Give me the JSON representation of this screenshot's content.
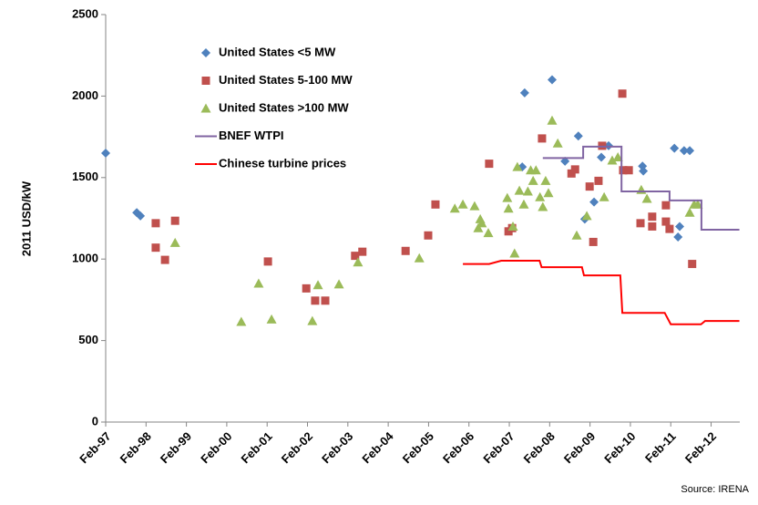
{
  "chart_data": {
    "type": "scatter",
    "y_label": "2011 USD/kW",
    "source": "Source: IRENA",
    "xlim": [
      1997.1,
      2012.81
    ],
    "xticks": [
      {
        "value": 1997.1,
        "label": "Feb-97"
      },
      {
        "value": 1998.1,
        "label": "Feb-98"
      },
      {
        "value": 1999.1,
        "label": "Feb-99"
      },
      {
        "value": 2000.1,
        "label": "Feb-00"
      },
      {
        "value": 2001.1,
        "label": "Feb-01"
      },
      {
        "value": 2002.1,
        "label": "Feb-02"
      },
      {
        "value": 2003.1,
        "label": "Feb-03"
      },
      {
        "value": 2004.1,
        "label": "Feb-04"
      },
      {
        "value": 2005.1,
        "label": "Feb-05"
      },
      {
        "value": 2006.1,
        "label": "Feb-06"
      },
      {
        "value": 2007.1,
        "label": "Feb-07"
      },
      {
        "value": 2008.1,
        "label": "Feb-08"
      },
      {
        "value": 2009.1,
        "label": "Feb-09"
      },
      {
        "value": 2010.1,
        "label": "Feb-10"
      },
      {
        "value": 2011.1,
        "label": "Feb-11"
      },
      {
        "value": 2012.1,
        "label": "Feb-12"
      }
    ],
    "ylim": [
      0,
      2500
    ],
    "yticks": [
      0,
      500,
      1000,
      1500,
      2000,
      2500
    ],
    "legend": "upper-left",
    "series": [
      {
        "name": "United States <5 MW",
        "color": "#4f81bd",
        "marker": "diamond",
        "x": [
          1997.1,
          1997.87,
          1997.96,
          2007.48,
          2007.42,
          2008.16,
          2008.48,
          2008.81,
          2008.97,
          2009.2,
          2009.38,
          2009.56,
          2010.4,
          2010.42,
          2011.19,
          2011.28,
          2011.32,
          2011.43,
          2011.57
        ],
        "values": [
          1650,
          1285,
          1265,
          2020,
          1565,
          2100,
          1600,
          1755,
          1245,
          1350,
          1625,
          1695,
          1570,
          1540,
          1680,
          1135,
          1200,
          1665,
          1665
        ]
      },
      {
        "name": "United States 5-100 MW",
        "color": "#c0504d",
        "marker": "square",
        "x": [
          1998.34,
          1998.34,
          1998.57,
          1998.82,
          2001.12,
          2002.07,
          2002.29,
          2002.54,
          2003.28,
          2003.46,
          2004.53,
          2005.09,
          2005.27,
          2006.6,
          2007.08,
          2007.17,
          2007.91,
          2008.64,
          2008.73,
          2009.09,
          2009.18,
          2009.31,
          2009.4,
          2009.9,
          2009.92,
          2010.06,
          2010.35,
          2010.64,
          2010.64,
          2010.98,
          2010.98,
          2011.07,
          2011.63
        ],
        "values": [
          1220,
          1070,
          995,
          1235,
          985,
          820,
          745,
          745,
          1020,
          1045,
          1050,
          1145,
          1335,
          1585,
          1170,
          1190,
          1740,
          1525,
          1550,
          1445,
          1105,
          1480,
          1695,
          2015,
          1545,
          1545,
          1220,
          1260,
          1200,
          1330,
          1230,
          1185,
          970
        ]
      },
      {
        "name": "United States >100 MW",
        "color": "#9bbb59",
        "marker": "triangle",
        "x": [
          1998.82,
          2000.46,
          2000.89,
          2001.21,
          2002.22,
          2002.36,
          2002.88,
          2003.35,
          2004.87,
          2005.75,
          2005.95,
          2006.24,
          2006.33,
          2006.38,
          2006.42,
          2006.58,
          2007.05,
          2007.08,
          2007.19,
          2007.23,
          2007.3,
          2007.35,
          2007.46,
          2007.56,
          2007.63,
          2007.69,
          2007.76,
          2007.86,
          2007.93,
          2008.0,
          2008.07,
          2008.16,
          2008.3,
          2008.77,
          2009.02,
          2009.45,
          2009.65,
          2009.79,
          2010.37,
          2010.51,
          2011.57,
          2011.68,
          2011.77
        ],
        "values": [
          1100,
          615,
          850,
          630,
          620,
          840,
          845,
          980,
          1005,
          1310,
          1335,
          1325,
          1190,
          1245,
          1220,
          1160,
          1375,
          1310,
          1200,
          1035,
          1565,
          1420,
          1335,
          1415,
          1545,
          1480,
          1545,
          1380,
          1320,
          1480,
          1405,
          1850,
          1710,
          1145,
          1265,
          1380,
          1605,
          1625,
          1425,
          1370,
          1285,
          1335,
          1335
        ]
      },
      {
        "name": "BNEF WTPI",
        "color": "#8064a2",
        "marker": "line",
        "x": [
          2007.93,
          2008.93,
          2008.93,
          2009.88,
          2009.88,
          2011.07,
          2011.07,
          2011.86,
          2011.86,
          2012.8
        ],
        "values": [
          1620,
          1620,
          1690,
          1690,
          1415,
          1415,
          1360,
          1360,
          1180,
          1180
        ]
      },
      {
        "name": "Chinese turbine prices",
        "color": "#ff0000",
        "marker": "line",
        "x": [
          2005.95,
          2006.6,
          2006.9,
          2007.85,
          2007.9,
          2008.9,
          2008.95,
          2009.85,
          2009.9,
          2010.95,
          2011.1,
          2011.85,
          2011.95,
          2012.8
        ],
        "values": [
          970,
          970,
          990,
          990,
          950,
          950,
          900,
          900,
          670,
          670,
          600,
          600,
          620,
          620
        ]
      }
    ]
  }
}
